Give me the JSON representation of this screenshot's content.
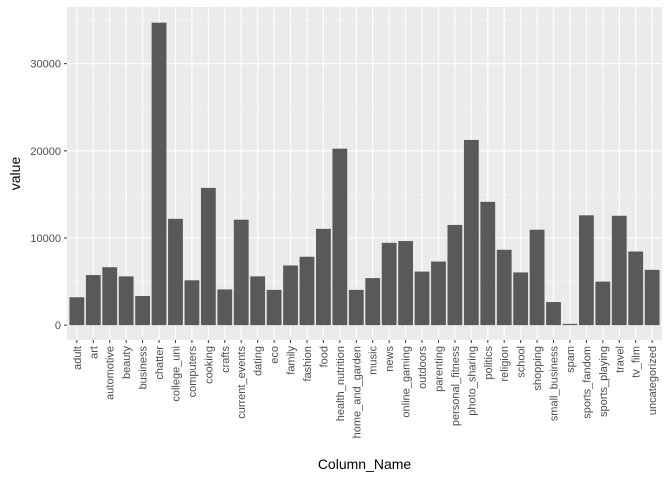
{
  "chart_data": {
    "type": "bar",
    "xlabel": "Column_Name",
    "ylabel": "value",
    "ylim": [
      -1700,
      36500
    ],
    "yticks": [
      0,
      10000,
      20000,
      30000
    ],
    "ytick_labels": [
      "0",
      "10000",
      "20000",
      "30000"
    ],
    "grid": true,
    "categories": [
      "adult",
      "art",
      "automotive",
      "beauty",
      "business",
      "chatter",
      "college_uni",
      "computers",
      "cooking",
      "crafts",
      "current_events",
      "dating",
      "eco",
      "family",
      "fashion",
      "food",
      "health_nutrition",
      "home_and_garden",
      "music",
      "news",
      "online_gaming",
      "outdoors",
      "parenting",
      "personal_fitness",
      "photo_sharing",
      "politics",
      "religion",
      "school",
      "shopping",
      "small_business",
      "spam",
      "sports_fandom",
      "sports_playing",
      "travel",
      "tv_film",
      "uncategorized"
    ],
    "values": [
      3200,
      5750,
      6650,
      5600,
      3350,
      34700,
      12200,
      5150,
      15750,
      4100,
      12100,
      5600,
      4050,
      6850,
      7850,
      11050,
      20250,
      4050,
      5400,
      9450,
      9650,
      6150,
      7300,
      11500,
      21250,
      14150,
      8650,
      6050,
      10950,
      2650,
      150,
      12600,
      5000,
      12550,
      8450,
      6350
    ]
  },
  "colors": {
    "panel": "#ebebeb",
    "grid_major": "#ffffff",
    "grid_minor": "#f5f5f5",
    "bar": "#595959",
    "tick_text": "#4d4d4d",
    "axis_title": "#000000"
  }
}
